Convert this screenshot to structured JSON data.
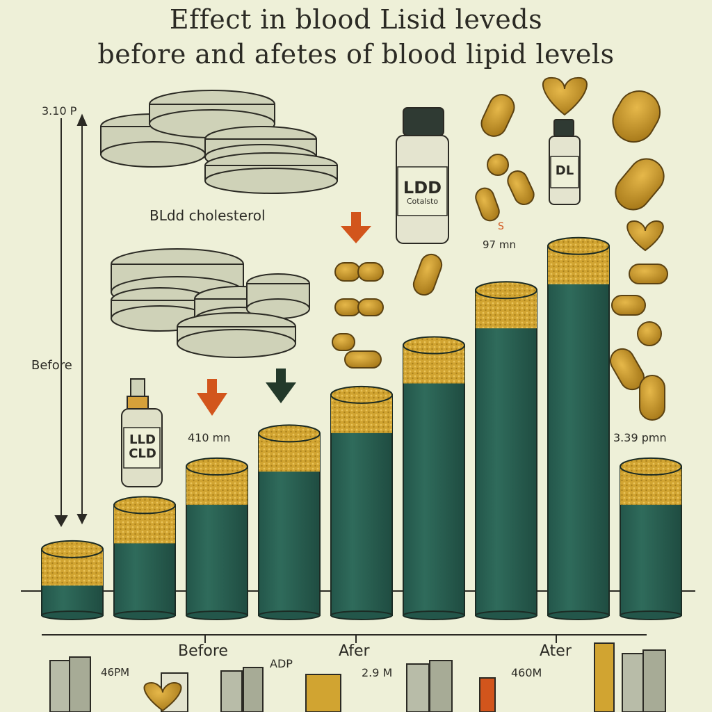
{
  "title_line1": "Effect in blood Lisid leveds",
  "title_line2": "before  and afetes of blood lipid levels",
  "labels": {
    "y_top": "3.10 P",
    "before_side": "Before",
    "cholesterol": "BLdd cholesterol",
    "bottle_ldl": "LLD CLD",
    "bottle_ldd_line1": "LDD",
    "bottle_ldd_line2": "Cotalsto",
    "bottle_dl": "DL",
    "bar_value_a": "410 mn",
    "bar_value_b": "97 mn",
    "bar_value_small": "S",
    "bar_value_c": "3.39 pmn",
    "x_before": "Before",
    "x_after_1": "Afer",
    "x_after_2": "Ater",
    "shelf_1": "46PM",
    "shelf_2": "ADP",
    "shelf_3": "2.9 M",
    "shelf_4": "460M"
  },
  "colors": {
    "background": "#eef0d8",
    "bar_body": "#2f6b5b",
    "bar_top": "#d1a431",
    "arrow_orange": "#d2551c",
    "arrow_dark": "#23392a",
    "disc": "#cfd2b8"
  },
  "chart_data": {
    "type": "bar",
    "title": "Effect in blood Lisid leveds",
    "subtitle": "before  and afetes of blood lipid levels",
    "categories": [
      "",
      "",
      "",
      "",
      "",
      "",
      "",
      "",
      ""
    ],
    "values": [
      12,
      20,
      27,
      33,
      40,
      49,
      59,
      67,
      27
    ],
    "ylim": [
      0,
      70
    ],
    "grid": false,
    "legend": "none"
  }
}
